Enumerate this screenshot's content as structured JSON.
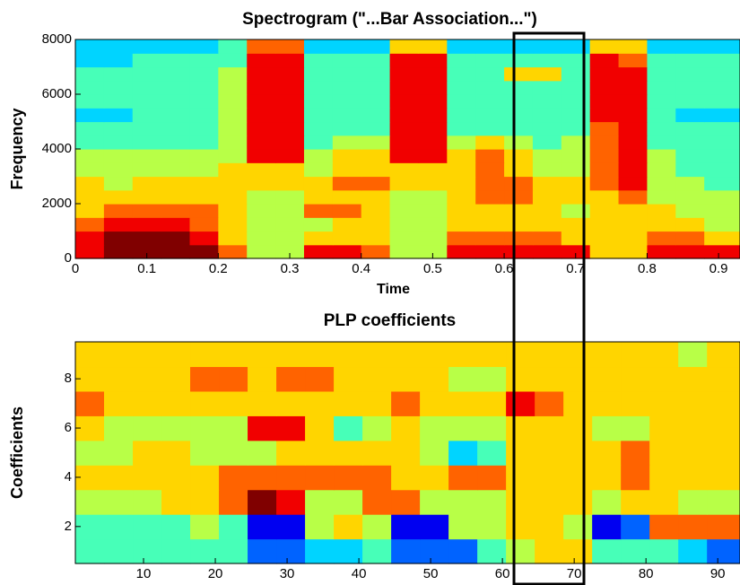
{
  "chart_data": [
    {
      "type": "heatmap",
      "title": "Spectrogram (\"...Bar Association...\")",
      "xlabel": "Time",
      "ylabel": "Frequency",
      "xlim": [
        0,
        0.93
      ],
      "ylim": [
        0,
        8000
      ],
      "xticks": [
        0,
        0.1,
        0.2,
        0.3,
        0.4,
        0.5,
        0.6,
        0.7,
        0.8,
        0.9
      ],
      "yticks": [
        0,
        2000,
        4000,
        6000,
        8000
      ],
      "colormap": "jet",
      "clim": [
        0,
        9
      ],
      "x": [
        0.02,
        0.06,
        0.1,
        0.14,
        0.18,
        0.22,
        0.26,
        0.3,
        0.34,
        0.38,
        0.42,
        0.46,
        0.5,
        0.54,
        0.58,
        0.62,
        0.66,
        0.7,
        0.74,
        0.78,
        0.82,
        0.86,
        0.9
      ],
      "y": [
        250,
        750,
        1250,
        1750,
        2250,
        2750,
        3250,
        3750,
        4250,
        4750,
        5250,
        5750,
        6250,
        6750,
        7250,
        7750
      ],
      "z": [
        [
          8,
          9,
          9,
          9,
          9,
          7,
          5,
          5,
          8,
          8,
          7,
          5,
          5,
          8,
          8,
          8,
          8,
          8,
          6,
          6,
          8,
          8,
          8
        ],
        [
          8,
          9,
          9,
          9,
          8,
          6,
          5,
          5,
          6,
          6,
          6,
          5,
          5,
          7,
          7,
          7,
          7,
          6,
          6,
          6,
          7,
          7,
          6
        ],
        [
          7,
          8,
          8,
          8,
          7,
          6,
          5,
          5,
          5,
          6,
          6,
          5,
          5,
          6,
          6,
          6,
          6,
          6,
          6,
          6,
          6,
          6,
          5
        ],
        [
          6,
          7,
          7,
          7,
          7,
          6,
          5,
          5,
          7,
          7,
          6,
          5,
          5,
          6,
          6,
          6,
          6,
          5,
          6,
          6,
          6,
          5,
          5
        ],
        [
          6,
          6,
          6,
          6,
          6,
          6,
          5,
          5,
          6,
          6,
          6,
          5,
          5,
          6,
          7,
          7,
          6,
          6,
          6,
          7,
          5,
          5,
          5
        ],
        [
          6,
          5,
          6,
          6,
          6,
          6,
          6,
          6,
          6,
          7,
          7,
          6,
          6,
          6,
          7,
          7,
          6,
          6,
          7,
          8,
          5,
          5,
          4
        ],
        [
          5,
          5,
          5,
          5,
          5,
          6,
          6,
          6,
          5,
          6,
          6,
          6,
          6,
          6,
          7,
          6,
          5,
          5,
          7,
          8,
          5,
          4,
          4
        ],
        [
          5,
          5,
          5,
          5,
          5,
          5,
          8,
          8,
          5,
          6,
          6,
          8,
          8,
          6,
          7,
          6,
          5,
          5,
          7,
          8,
          5,
          4,
          4
        ],
        [
          4,
          4,
          4,
          4,
          4,
          5,
          8,
          8,
          4,
          5,
          5,
          8,
          8,
          5,
          6,
          5,
          4,
          5,
          7,
          8,
          4,
          4,
          4
        ],
        [
          4,
          4,
          4,
          4,
          4,
          5,
          8,
          8,
          4,
          4,
          4,
          8,
          8,
          4,
          4,
          4,
          4,
          4,
          7,
          8,
          4,
          4,
          4
        ],
        [
          3,
          3,
          4,
          4,
          4,
          5,
          8,
          8,
          4,
          4,
          4,
          8,
          8,
          4,
          4,
          4,
          4,
          4,
          8,
          8,
          4,
          3,
          3
        ],
        [
          4,
          4,
          4,
          4,
          4,
          5,
          8,
          8,
          4,
          4,
          4,
          8,
          8,
          4,
          4,
          4,
          4,
          4,
          8,
          8,
          4,
          4,
          4
        ],
        [
          4,
          4,
          4,
          4,
          4,
          5,
          8,
          8,
          4,
          4,
          4,
          8,
          8,
          4,
          4,
          4,
          4,
          4,
          8,
          8,
          4,
          4,
          4
        ],
        [
          4,
          4,
          4,
          4,
          4,
          5,
          8,
          8,
          4,
          4,
          4,
          8,
          8,
          4,
          4,
          6,
          6,
          4,
          8,
          8,
          4,
          4,
          4
        ],
        [
          3,
          3,
          4,
          4,
          4,
          4,
          8,
          8,
          4,
          4,
          4,
          8,
          8,
          4,
          4,
          4,
          4,
          4,
          8,
          7,
          4,
          4,
          4
        ],
        [
          3,
          3,
          3,
          3,
          3,
          4,
          7,
          7,
          3,
          3,
          3,
          6,
          6,
          3,
          3,
          3,
          3,
          3,
          6,
          6,
          3,
          3,
          3
        ]
      ]
    },
    {
      "type": "heatmap",
      "title": "PLP coefficients",
      "ylabel": "Coefficients",
      "xlim": [
        0.5,
        93.1
      ],
      "ylim": [
        0.5,
        9.5
      ],
      "xticks": [
        10,
        20,
        30,
        40,
        50,
        60,
        70,
        80,
        90
      ],
      "yticks": [
        2,
        4,
        6,
        8
      ],
      "colormap": "jet",
      "clim": [
        0,
        9
      ],
      "x": [
        2.5,
        6.5,
        10.5,
        14.5,
        18.5,
        22.5,
        26.5,
        30.5,
        34.5,
        38.5,
        42.5,
        46.5,
        50.5,
        54.5,
        58.5,
        62.5,
        66.5,
        70.5,
        74.5,
        78.5,
        82.5,
        86.5,
        90.5
      ],
      "y": [
        1,
        2,
        3,
        4,
        5,
        6,
        7,
        8,
        9
      ],
      "z": [
        [
          4,
          4,
          4,
          4,
          4,
          4,
          2,
          2,
          3,
          3,
          4,
          2,
          2,
          2,
          4,
          5,
          6,
          6,
          4,
          4,
          4,
          3,
          2
        ],
        [
          4,
          4,
          4,
          4,
          5,
          4,
          1,
          1,
          5,
          6,
          5,
          1,
          1,
          5,
          5,
          6,
          6,
          5,
          1,
          2,
          7,
          7,
          7
        ],
        [
          5,
          5,
          5,
          6,
          6,
          7,
          9,
          8,
          5,
          5,
          7,
          7,
          5,
          5,
          5,
          6,
          6,
          6,
          5,
          6,
          6,
          5,
          5
        ],
        [
          6,
          6,
          6,
          6,
          6,
          7,
          7,
          7,
          7,
          7,
          7,
          6,
          6,
          7,
          7,
          6,
          6,
          6,
          6,
          7,
          6,
          6,
          6
        ],
        [
          5,
          5,
          6,
          6,
          5,
          5,
          5,
          6,
          6,
          6,
          6,
          6,
          5,
          3,
          4,
          6,
          6,
          6,
          6,
          7,
          6,
          6,
          6
        ],
        [
          6,
          5,
          5,
          5,
          5,
          5,
          8,
          8,
          6,
          4,
          5,
          6,
          5,
          5,
          5,
          6,
          6,
          6,
          5,
          5,
          6,
          6,
          6
        ],
        [
          7,
          6,
          6,
          6,
          6,
          6,
          6,
          6,
          6,
          6,
          6,
          7,
          6,
          6,
          6,
          8,
          7,
          6,
          6,
          6,
          6,
          6,
          6
        ],
        [
          6,
          6,
          6,
          6,
          7,
          7,
          6,
          7,
          7,
          6,
          6,
          6,
          6,
          5,
          5,
          6,
          6,
          6,
          6,
          6,
          6,
          6,
          6
        ],
        [
          6,
          6,
          6,
          6,
          6,
          6,
          6,
          6,
          6,
          6,
          6,
          6,
          6,
          6,
          6,
          6,
          6,
          6,
          6,
          6,
          6,
          5,
          6
        ]
      ]
    }
  ]
}
